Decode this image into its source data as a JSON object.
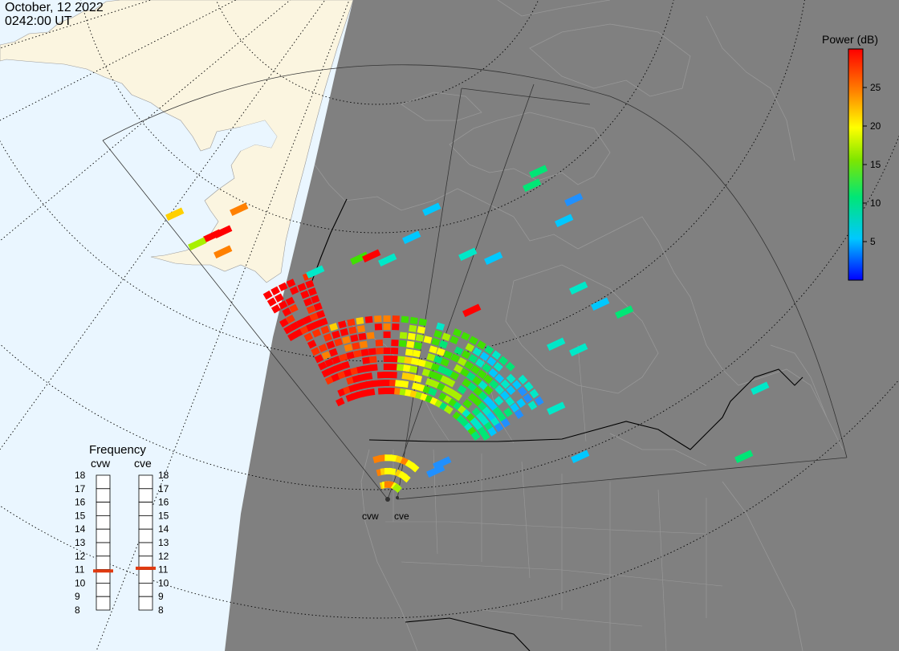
{
  "header": {
    "date": "October, 12 2022",
    "time": "0242:00 UT"
  },
  "radars": [
    {
      "code": "cvw",
      "selected_freq_mhz": 10.9
    },
    {
      "code": "cve",
      "selected_freq_mhz": 11.1
    }
  ],
  "frequency_panel": {
    "title": "Frequency",
    "ticks": [
      "18",
      "17",
      "16",
      "15",
      "14",
      "13",
      "12",
      "11",
      "10",
      "9",
      "8"
    ]
  },
  "colorbar": {
    "title": "Power (dB)",
    "ticks": [
      "25",
      "20",
      "15",
      "10",
      "5"
    ],
    "range": [
      0,
      30
    ]
  },
  "colors": {
    "ocean": "#eaf6ff",
    "land_day": "#fbf5e0",
    "night": "#808080",
    "marker": "#e03a10"
  },
  "map_data": {
    "projection": "polar-stereographic-north",
    "fields_of_view": [
      "cvw",
      "cve"
    ],
    "overlays": [
      "coastlines",
      "country-borders",
      "state-province-borders",
      "lat-lon-grid",
      "terminator"
    ]
  }
}
